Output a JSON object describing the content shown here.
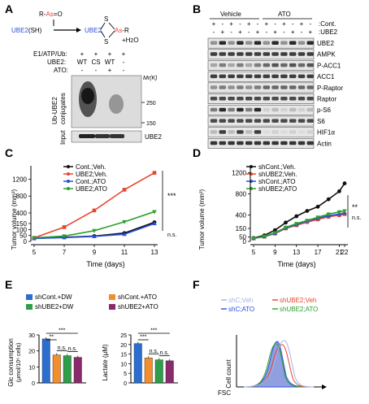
{
  "panels": [
    "A",
    "B",
    "C",
    "D",
    "E",
    "F"
  ],
  "panel_a": {
    "reagent_pre": "R-",
    "reagent_as": "As",
    "reagent_post": "=O",
    "ube2": "UBE2",
    "sh2": "(SH)",
    "sub2": "2",
    "s_top": "S",
    "s_bot": "S",
    "product_as": "As",
    "product_r": "-R",
    "water": "+H",
    "water_sub": "2",
    "water_o": "O",
    "row1": "E1/ATP/Ub:",
    "row1_vals": [
      "+",
      "+",
      "+",
      "+"
    ],
    "row2": "UBE2:",
    "row2_vals": [
      "WT",
      "CS",
      "WT",
      "-"
    ],
    "row3": "ATO:",
    "row3_vals": [
      "-",
      "-",
      "+",
      "-"
    ],
    "mr": "Mr(K)",
    "mw": [
      "250",
      "150"
    ],
    "ylabel1": "Ub-UBE2",
    "ylabel2": "conjugates",
    "input": "Input",
    "input_band": "UBE2"
  },
  "panel_b": {
    "vehicle": "Vehicle",
    "ato": "ATO",
    "cont_label": ":Cont.",
    "ube2_label": ":UBE2",
    "cont_signs": [
      "+",
      "-",
      "+",
      "-",
      "+",
      "-",
      "+",
      "-",
      "+",
      "-",
      "+",
      "-"
    ],
    "ube2_signs": [
      "-",
      "+",
      "-",
      "+",
      "-",
      "+",
      "-",
      "+",
      "-",
      "+",
      "-",
      "+"
    ],
    "rows": [
      "UBE2",
      "AMPK",
      "P-ACC1",
      "ACC1",
      "P-Raptor",
      "Raptor",
      "p-S6",
      "S6",
      "HIF1α",
      "Actin"
    ]
  },
  "panel_c": {
    "chart_data": {
      "type": "line",
      "xlabel": "Time (days)",
      "ylabel": "Tumor volume (mm³)",
      "x": [
        5,
        7,
        9,
        11,
        13
      ],
      "xticks": [
        "5",
        "7",
        "9",
        "11",
        "13"
      ],
      "yticks": [
        "0",
        "50",
        "100",
        "150",
        "400",
        "800",
        "1200"
      ],
      "series": [
        {
          "name": "Cont.;Veh.",
          "color": "#111111",
          "values": [
            25,
            35,
            45,
            70,
            180
          ]
        },
        {
          "name": "UBE2;Veh.",
          "color": "#e8452e",
          "values": [
            30,
            120,
            460,
            950,
            1350
          ]
        },
        {
          "name": "Cont.;ATO",
          "color": "#2a4fd8",
          "values": [
            25,
            32,
            42,
            60,
            150
          ]
        },
        {
          "name": "UBE2;ATO",
          "color": "#2ca02c",
          "values": [
            30,
            45,
            90,
            190,
            430
          ]
        }
      ],
      "sig1": "***",
      "sig2": "n.s."
    }
  },
  "panel_d": {
    "chart_data": {
      "type": "line",
      "xlabel": "Time (days)",
      "ylabel": "Tumor volume (mm³)",
      "x": [
        5,
        7,
        9,
        11,
        13,
        15,
        17,
        19,
        21,
        22
      ],
      "xticks": [
        "5",
        "9",
        "13",
        "17",
        "21",
        "22"
      ],
      "yticks": [
        "0",
        "50",
        "150",
        "400",
        "800",
        "1200"
      ],
      "series": [
        {
          "name": "shCont.;Veh.",
          "color": "#111111",
          "values": [
            40,
            70,
            130,
            260,
            380,
            480,
            560,
            700,
            850,
            1000
          ]
        },
        {
          "name": "shUBE2;Veh.",
          "color": "#e8452e",
          "values": [
            35,
            55,
            90,
            150,
            210,
            270,
            320,
            370,
            400,
            420
          ]
        },
        {
          "name": "shCont.;ATO",
          "color": "#2a4fd8",
          "values": [
            35,
            55,
            95,
            160,
            220,
            290,
            340,
            390,
            420,
            440
          ]
        },
        {
          "name": "shUBE2;ATO",
          "color": "#2ca02c",
          "values": [
            35,
            60,
            100,
            170,
            240,
            300,
            360,
            420,
            460,
            480
          ]
        }
      ],
      "sig1": "**",
      "sig2": "n.s."
    }
  },
  "panel_e": {
    "legend": [
      {
        "name": "shCont.+DW",
        "color": "#2a6fd0"
      },
      {
        "name": "shCont.+ATO",
        "color": "#f28e2b"
      },
      {
        "name": "shUBE2+DW",
        "color": "#2e9e4a"
      },
      {
        "name": "shUBE2+ATO",
        "color": "#8b2a6a"
      }
    ],
    "chart_data": [
      {
        "type": "bar",
        "categories": [
          "shCont.+DW",
          "shCont.+ATO",
          "shUBE2+DW",
          "shUBE2+ATO"
        ],
        "values": [
          27.5,
          17.5,
          17,
          16
        ],
        "ylabel1": "Glc consumption",
        "ylabel2": "(μmol/10⁶ cells)",
        "yticks": [
          "0",
          "10",
          "20",
          "30"
        ],
        "ylim": [
          0,
          30
        ],
        "sig": [
          "***",
          "**",
          "n.s.",
          "n.s."
        ]
      },
      {
        "type": "bar",
        "categories": [
          "shCont.+DW",
          "shCont.+ATO",
          "shUBE2+DW",
          "shUBE2+ATO"
        ],
        "values": [
          20.5,
          13,
          12,
          11.5
        ],
        "ylabel1": "Lactate (μM)",
        "yticks": [
          "0",
          "5",
          "10",
          "15",
          "20",
          "25"
        ],
        "ylim": [
          0,
          25
        ],
        "sig": [
          "***",
          "***",
          "n.s.",
          "n.s."
        ]
      }
    ]
  },
  "panel_f": {
    "legend": [
      {
        "name": "shC;Veh",
        "color": "#9fb6e8"
      },
      {
        "name": "shUBE2;Veh",
        "color": "#e8452e"
      },
      {
        "name": "shC;ATO",
        "color": "#2a4fd8"
      },
      {
        "name": "shUBE2;ATO",
        "color": "#2ca02c"
      }
    ],
    "ylabel": "Cell count",
    "xlabel": "FSC"
  }
}
